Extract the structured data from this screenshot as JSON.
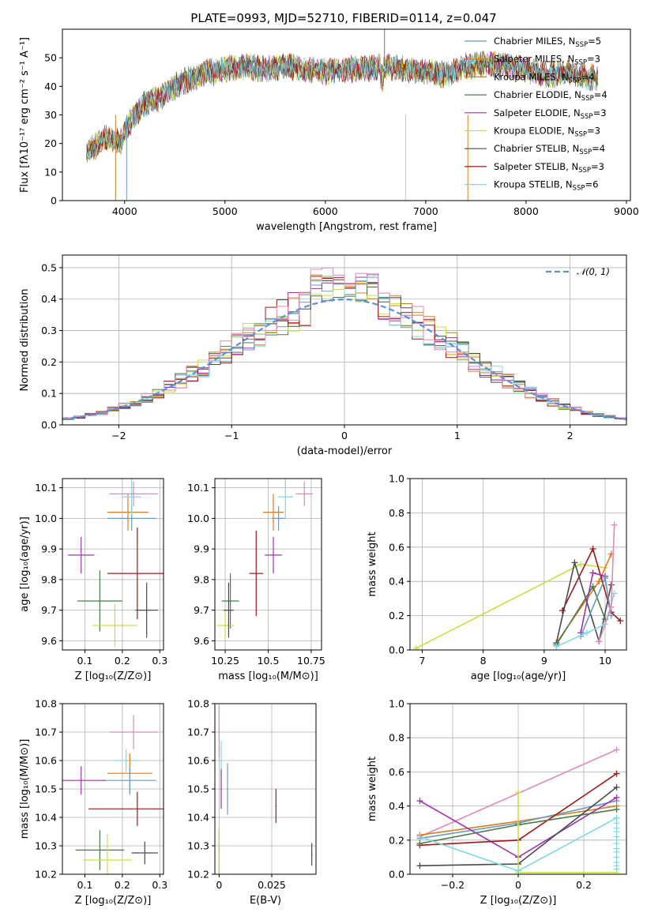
{
  "title": "PLATE=0993, MJD=52710, FIBERID=0114, z=0.047",
  "colors": [
    "#6b9ac4",
    "#e07b1a",
    "#c8811a",
    "#4a7a4a",
    "#a033b0",
    "#c8e040",
    "#4a4a4a",
    "#a01818",
    "#80d8e0",
    "#e088b8"
  ],
  "chart_data": [
    {
      "id": "spectrum",
      "type": "line",
      "xlabel": "wavelength [Angstrom, rest frame]",
      "ylabel": "Flux [fλ10⁻¹⁷ erg cm⁻² s⁻¹ A⁻¹]",
      "xlim": [
        3380,
        9040
      ],
      "ylim": [
        0,
        60
      ],
      "xticks": [
        4000,
        5000,
        6000,
        7000,
        8000,
        9000
      ],
      "yticks": [
        0,
        10,
        20,
        30,
        40,
        50
      ],
      "grid": false,
      "legend_placement": "top-right",
      "continuum": {
        "x": [
          3620,
          3700,
          3800,
          3900,
          3950,
          4000,
          4100,
          4200,
          4300,
          4400,
          4500,
          4600,
          4700,
          4800,
          4900,
          5000,
          5200,
          5400,
          5600,
          5800,
          6000,
          6200,
          6400,
          6600,
          6800,
          7000,
          7200,
          7400,
          7600,
          7800,
          8000,
          8200,
          8400,
          8600,
          8700
        ],
        "y": [
          17,
          19,
          22,
          21,
          20,
          24,
          30,
          34,
          35,
          37,
          40,
          42,
          43,
          45,
          45,
          46,
          47,
          46,
          47,
          46,
          45,
          46,
          46,
          47,
          46,
          45,
          44,
          47,
          48,
          47,
          46,
          44,
          45,
          43,
          43
        ]
      },
      "series": [
        {
          "name": "Chabrier MILES, N_SSP=5",
          "color": "#6b9ac4"
        },
        {
          "name": "Salpeter MILES, N_SSP=3",
          "color": "#e07b1a"
        },
        {
          "name": "Kroupa MILES, N_SSP=4",
          "color": "#c8811a"
        },
        {
          "name": "Chabrier ELODIE, N_SSP=4",
          "color": "#4a7a4a"
        },
        {
          "name": "Salpeter ELODIE, N_SSP=3",
          "color": "#a033b0"
        },
        {
          "name": "Kroupa ELODIE, N_SSP=3",
          "color": "#c8e040"
        },
        {
          "name": "Chabrier STELIB, N_SSP=4",
          "color": "#4a4a4a"
        },
        {
          "name": "Salpeter STELIB, N_SSP=3",
          "color": "#a01818"
        },
        {
          "name": "Kroupa STELIB, N_SSP=6",
          "color": "#80d8e0"
        }
      ],
      "legend": [
        {
          "pre": "Chabrier MILES, N",
          "sub": "SSP",
          "post": "=5",
          "color": "#6b9ac4"
        },
        {
          "pre": "Salpeter MILES, N",
          "sub": "SSP",
          "post": "=3",
          "color": "#e07b1a"
        },
        {
          "pre": "Kroupa MILES, N",
          "sub": "SSP",
          "post": "=4",
          "color": "#c8811a"
        },
        {
          "pre": "Chabrier ELODIE, N",
          "sub": "SSP",
          "post": "=4",
          "color": "#4a7a4a"
        },
        {
          "pre": "Salpeter ELODIE, N",
          "sub": "SSP",
          "post": "=3",
          "color": "#a033b0"
        },
        {
          "pre": "Kroupa ELODIE, N",
          "sub": "SSP",
          "post": "=3",
          "color": "#c8e040"
        },
        {
          "pre": "Chabrier STELIB, N",
          "sub": "SSP",
          "post": "=4",
          "color": "#4a4a4a"
        },
        {
          "pre": "Salpeter STELIB, N",
          "sub": "SSP",
          "post": "=3",
          "color": "#a01818"
        },
        {
          "pre": "Kroupa STELIB, N",
          "sub": "SSP",
          "post": "=6",
          "color": "#80d8e0"
        }
      ]
    },
    {
      "id": "residuals",
      "type": "bar",
      "xlabel": "(data-model)/error",
      "ylabel": "Normed distribution",
      "xlim": [
        -2.5,
        2.5
      ],
      "ylim": [
        0,
        0.54
      ],
      "xticks": [
        -2,
        -1,
        0,
        1,
        2
      ],
      "yticks": [
        0.0,
        0.1,
        0.2,
        0.3,
        0.4,
        0.5
      ],
      "grid": true,
      "bin_width": 0.1,
      "legend_placement": "top-right",
      "reference": {
        "name": "𝒩(0, 1)",
        "color": "#5b8fd9",
        "style": "dashed"
      },
      "peaks": [
        0.45,
        0.47,
        0.48,
        0.46,
        0.5,
        0.45,
        0.47,
        0.49,
        0.48,
        0.51
      ]
    },
    {
      "id": "Z-age",
      "type": "scatter",
      "xlabel": "Z [log₁₀(Z/Z⊙)]",
      "ylabel": "age  [log₁₀(age/yr)]",
      "xlim": [
        0.04,
        0.31
      ],
      "ylim": [
        9.57,
        10.13
      ],
      "xticks": [
        0.1,
        0.2,
        0.3
      ],
      "yticks": [
        9.6,
        9.7,
        9.8,
        9.9,
        10.0,
        10.1
      ],
      "grid": true,
      "points": [
        {
          "x": 0.225,
          "y": 10.0,
          "dx": 0.065,
          "dy": 0.04,
          "color": "#6b9ac4"
        },
        {
          "x": 0.215,
          "y": 10.02,
          "dx": 0.055,
          "dy": 0.06,
          "color": "#e07b1a"
        },
        {
          "x": 0.225,
          "y": 10.07,
          "dx": 0.025,
          "dy": 0.06,
          "color": "#80d8e0"
        },
        {
          "x": 0.23,
          "y": 10.08,
          "dx": 0.065,
          "dy": 0.04,
          "color": "#e088b8"
        },
        {
          "x": 0.09,
          "y": 9.88,
          "dx": 0.035,
          "dy": 0.06,
          "color": "#a033b0"
        },
        {
          "x": 0.24,
          "y": 9.82,
          "dx": 0.08,
          "dy": 0.15,
          "color": "#a01818"
        },
        {
          "x": 0.14,
          "y": 9.73,
          "dx": 0.06,
          "dy": 0.1,
          "color": "#4a7a4a"
        },
        {
          "x": 0.18,
          "y": 9.65,
          "dx": 0.06,
          "dy": 0.07,
          "color": "#c8e040"
        },
        {
          "x": 0.265,
          "y": 9.7,
          "dx": 0.03,
          "dy": 0.09,
          "color": "#4a4a4a"
        }
      ]
    },
    {
      "id": "mass-age",
      "type": "scatter",
      "xlabel": "mass [log₁₀(M/M⊙)]",
      "ylabel": "",
      "xlim": [
        10.19,
        10.81
      ],
      "ylim": [
        9.57,
        10.13
      ],
      "xticks": [
        10.25,
        10.5,
        10.75
      ],
      "yticks": [
        9.6,
        9.7,
        9.8,
        9.9,
        10.0,
        10.1
      ],
      "grid": true,
      "points": [
        {
          "x": 10.56,
          "y": 10.0,
          "dx": 0.04,
          "dy": 0.04,
          "color": "#6b9ac4"
        },
        {
          "x": 10.53,
          "y": 10.02,
          "dx": 0.06,
          "dy": 0.06,
          "color": "#e07b1a"
        },
        {
          "x": 10.6,
          "y": 10.07,
          "dx": 0.045,
          "dy": 0.07,
          "color": "#80d8e0"
        },
        {
          "x": 10.71,
          "y": 10.08,
          "dx": 0.05,
          "dy": 0.04,
          "color": "#e088b8"
        },
        {
          "x": 10.53,
          "y": 9.88,
          "dx": 0.05,
          "dy": 0.06,
          "color": "#a033b0"
        },
        {
          "x": 10.43,
          "y": 9.82,
          "dx": 0.04,
          "dy": 0.14,
          "color": "#a01818"
        },
        {
          "x": 10.28,
          "y": 9.73,
          "dx": 0.05,
          "dy": 0.09,
          "color": "#4a7a4a"
        },
        {
          "x": 10.25,
          "y": 9.65,
          "dx": 0.05,
          "dy": 0.05,
          "color": "#c8e040"
        },
        {
          "x": 10.27,
          "y": 9.7,
          "dx": 0.03,
          "dy": 0.09,
          "color": "#4a4a4a"
        }
      ]
    },
    {
      "id": "age-weight",
      "type": "line",
      "xlabel": "age  [log₁₀(age/yr)]",
      "ylabel": "mass weight",
      "xlim": [
        6.8,
        10.35
      ],
      "ylim": [
        0,
        1.0
      ],
      "xticks": [
        7,
        8,
        9,
        10
      ],
      "yticks": [
        0.0,
        0.2,
        0.4,
        0.6,
        0.8,
        1.0
      ],
      "grid": true,
      "series": [
        {
          "color": "#c8e040",
          "x": [
            6.9,
            9.6,
            10.0
          ],
          "y": [
            0.01,
            0.5,
            0.48
          ]
        },
        {
          "color": "#e07b1a",
          "x": [
            9.2,
            9.9,
            10.1
          ],
          "y": [
            0.04,
            0.4,
            0.56
          ]
        },
        {
          "color": "#a01818",
          "x": [
            9.3,
            9.8,
            10.1,
            10.25
          ],
          "y": [
            0.23,
            0.59,
            0.22,
            0.17
          ]
        },
        {
          "color": "#4a4a4a",
          "x": [
            9.2,
            9.5,
            9.9,
            10.1
          ],
          "y": [
            0.04,
            0.51,
            0.05,
            0.38
          ]
        },
        {
          "color": "#4a7a4a",
          "x": [
            9.2,
            9.8,
            10.0
          ],
          "y": [
            0.03,
            0.37,
            0.18
          ]
        },
        {
          "color": "#a033b0",
          "x": [
            9.6,
            9.8,
            10.0
          ],
          "y": [
            0.1,
            0.45,
            0.43
          ]
        },
        {
          "color": "#6b9ac4",
          "x": [
            9.6,
            10.0,
            10.1
          ],
          "y": [
            0.08,
            0.42,
            0.2
          ]
        },
        {
          "color": "#80d8e0",
          "x": [
            9.2,
            9.7,
            10.0,
            10.15
          ],
          "y": [
            0.02,
            0.1,
            0.15,
            0.33
          ]
        },
        {
          "color": "#e088b8",
          "x": [
            9.9,
            10.1,
            10.15
          ],
          "y": [
            0.05,
            0.25,
            0.73
          ]
        }
      ]
    },
    {
      "id": "Z-mass",
      "type": "scatter",
      "xlabel": "Z [log₁₀(Z/Z⊙)]",
      "ylabel": "mass [log₁₀(M/M⊙)]",
      "xlim": [
        0.04,
        0.31
      ],
      "ylim": [
        10.2,
        10.8
      ],
      "xticks": [
        0.1,
        0.2,
        0.3
      ],
      "yticks": [
        10.2,
        10.3,
        10.4,
        10.5,
        10.6,
        10.7,
        10.8
      ],
      "grid": true,
      "points": [
        {
          "x": 0.23,
          "y": 10.7,
          "dx": 0.065,
          "dy": 0.06,
          "color": "#e088b8"
        },
        {
          "x": 0.21,
          "y": 10.6,
          "dx": 0.035,
          "dy": 0.04,
          "color": "#80d8e0"
        },
        {
          "x": 0.22,
          "y": 10.555,
          "dx": 0.06,
          "dy": 0.07,
          "color": "#e07b1a"
        },
        {
          "x": 0.22,
          "y": 10.53,
          "dx": 0.07,
          "dy": 0.05,
          "color": "#6b9ac4"
        },
        {
          "x": 0.09,
          "y": 10.53,
          "dx": 0.065,
          "dy": 0.05,
          "color": "#a033b0"
        },
        {
          "x": 0.24,
          "y": 10.43,
          "dx": 0.13,
          "dy": 0.06,
          "color": "#a01818"
        },
        {
          "x": 0.14,
          "y": 10.285,
          "dx": 0.065,
          "dy": 0.07,
          "color": "#4a7a4a"
        },
        {
          "x": 0.16,
          "y": 10.25,
          "dx": 0.065,
          "dy": 0.09,
          "color": "#c8e040"
        },
        {
          "x": 0.26,
          "y": 10.275,
          "dx": 0.035,
          "dy": 0.04,
          "color": "#4a4a4a"
        }
      ]
    },
    {
      "id": "EBV-mass",
      "type": "scatter",
      "xlabel": "E(B-V)",
      "ylabel": "",
      "xlim": [
        -0.002,
        0.046
      ],
      "ylim": [
        10.2,
        10.8
      ],
      "xticks": [
        0.0,
        0.025
      ],
      "yticks": [
        10.2,
        10.3,
        10.4,
        10.5,
        10.6,
        10.7,
        10.8
      ],
      "grid": true,
      "points": [
        {
          "x": 0.0,
          "y": 10.7,
          "dx": 0.0003,
          "dy": 0.09,
          "color": "#e088b8"
        },
        {
          "x": 0.001,
          "y": 10.6,
          "dx": 0.0003,
          "dy": 0.07,
          "color": "#80d8e0"
        },
        {
          "x": 0.004,
          "y": 10.5,
          "dx": 0.0003,
          "dy": 0.09,
          "color": "#6b9ac4"
        },
        {
          "x": 0.001,
          "y": 10.5,
          "dx": 0.0003,
          "dy": 0.07,
          "color": "#a033b0"
        },
        {
          "x": 0.027,
          "y": 10.44,
          "dx": 0.0003,
          "dy": 0.06,
          "color": "#a01818"
        },
        {
          "x": 0.0,
          "y": 10.28,
          "dx": 0.0003,
          "dy": 0.08,
          "color": "#4a7a4a"
        },
        {
          "x": 0.0,
          "y": 10.27,
          "dx": 0.0003,
          "dy": 0.09,
          "color": "#c8e040"
        },
        {
          "x": 0.044,
          "y": 10.27,
          "dx": 0.0003,
          "dy": 0.04,
          "color": "#4a4a4a"
        }
      ]
    },
    {
      "id": "Z-weight",
      "type": "line",
      "xlabel": "Z [log₁₀(Z/Z⊙)]",
      "ylabel": "mass weight",
      "xlim": [
        -0.33,
        0.33
      ],
      "ylim": [
        0,
        1.0
      ],
      "xticks": [
        -0.2,
        0.0,
        0.2
      ],
      "yticks": [
        0.0,
        0.2,
        0.4,
        0.6,
        0.8,
        1.0
      ],
      "grid": true,
      "series": [
        {
          "color": "#e088b8",
          "x": [
            -0.3,
            0.3
          ],
          "y": [
            0.22,
            0.73
          ]
        },
        {
          "color": "#e07b1a",
          "x": [
            -0.3,
            0.0,
            0.3
          ],
          "y": [
            0.23,
            0.31,
            0.4
          ]
        },
        {
          "color": "#6b9ac4",
          "x": [
            -0.3,
            0.0,
            0.3
          ],
          "y": [
            0.21,
            0.3,
            0.43
          ]
        },
        {
          "color": "#a033b0",
          "x": [
            -0.3,
            0.0,
            0.3
          ],
          "y": [
            0.43,
            0.1,
            0.45
          ]
        },
        {
          "color": "#a01818",
          "x": [
            -0.3,
            0.0,
            0.3
          ],
          "y": [
            0.17,
            0.2,
            0.59
          ]
        },
        {
          "color": "#4a7a4a",
          "x": [
            -0.3,
            0.0,
            0.3
          ],
          "y": [
            0.18,
            0.29,
            0.38
          ]
        },
        {
          "color": "#4a4a4a",
          "x": [
            -0.3,
            0.0,
            0.3
          ],
          "y": [
            0.05,
            0.06,
            0.51
          ]
        },
        {
          "color": "#c8e040",
          "x": [
            0.0,
            0.0,
            0.3
          ],
          "y": [
            0.48,
            0.01,
            0.01
          ]
        },
        {
          "color": "#80d8e0",
          "x": [
            -0.3,
            0.0,
            0.3
          ],
          "y": [
            0.22,
            0.02,
            0.33
          ]
        }
      ],
      "errbars_x03": [
        0.03,
        0.05,
        0.07,
        0.1,
        0.13,
        0.15,
        0.18,
        0.22,
        0.25,
        0.27,
        0.3,
        0.33
      ]
    }
  ]
}
